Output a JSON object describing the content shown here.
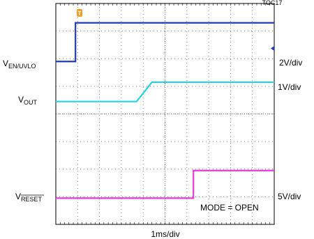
{
  "figure_id": "TOC17",
  "chart_data": {
    "type": "line",
    "x_scale": "1ms/div",
    "divisions": {
      "x": 10,
      "y": 8
    },
    "grid": true,
    "annotation": "MODE = OPEN",
    "series": [
      {
        "name": "EN/UVLO",
        "label_main": "V",
        "label_sub": "EN/UVLO",
        "sub_overline": false,
        "scale": "2V/div",
        "color": "#1f3bbf",
        "x": [
          0,
          0.9,
          0.9,
          10
        ],
        "y": [
          5.9,
          5.9,
          7.3,
          7.3
        ]
      },
      {
        "name": "OUT",
        "label_main": "V",
        "label_sub": "OUT",
        "sub_overline": false,
        "scale": "1V/div",
        "color": "#22d3e6",
        "x": [
          0,
          3.7,
          4.4,
          10
        ],
        "y": [
          4.45,
          4.45,
          5.15,
          5.15
        ]
      },
      {
        "name": "RESET",
        "label_main": "V",
        "label_sub": "RESET",
        "sub_overline": true,
        "scale": "5V/div",
        "color": "#e83ad8",
        "x": [
          0,
          6.3,
          6.3,
          10
        ],
        "y": [
          0.95,
          0.95,
          1.95,
          1.95
        ]
      }
    ]
  }
}
